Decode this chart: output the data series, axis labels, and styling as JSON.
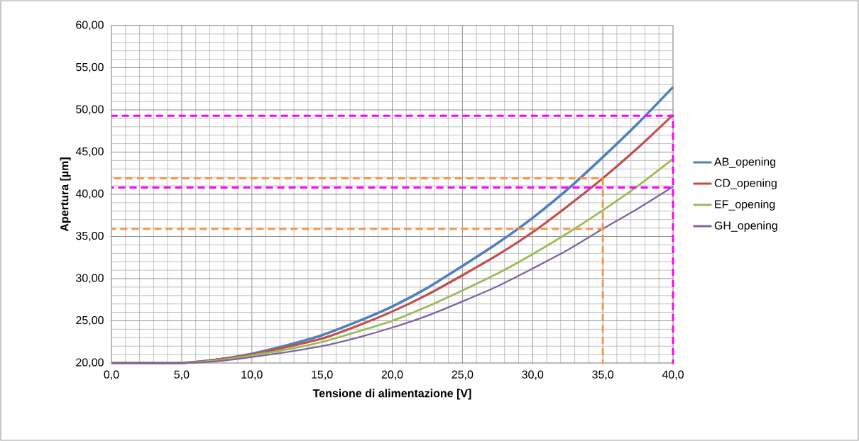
{
  "chart_data": {
    "type": "line",
    "xlabel": "Tensione di alimentazione [V]",
    "ylabel": "Apertura [µm]",
    "x": [
      0,
      2.5,
      5,
      7.5,
      10,
      12.5,
      15,
      17.5,
      20,
      22.5,
      25,
      27.5,
      30,
      32.5,
      35,
      37.5,
      40
    ],
    "series": [
      {
        "name": "AB_opening",
        "color": "#4f81bd",
        "values": [
          20,
          20,
          20.0,
          20.4,
          21.1,
          22.1,
          23.3,
          24.9,
          26.7,
          28.9,
          31.5,
          34.2,
          37.2,
          40.6,
          44.4,
          48.4,
          52.7
        ]
      },
      {
        "name": "CD_opening",
        "color": "#c0504d",
        "values": [
          20,
          20,
          20.0,
          20.4,
          21.0,
          21.9,
          22.9,
          24.4,
          26.1,
          28.1,
          30.4,
          32.8,
          35.5,
          38.6,
          41.9,
          45.5,
          49.4
        ]
      },
      {
        "name": "EF_opening",
        "color": "#9bbb59",
        "values": [
          20,
          20,
          20.0,
          20.3,
          20.9,
          21.6,
          22.5,
          23.7,
          25.0,
          26.7,
          28.6,
          30.6,
          32.9,
          35.4,
          38.1,
          41.0,
          44.2
        ]
      },
      {
        "name": "GH_opening",
        "color": "#8064a2",
        "values": [
          20,
          20,
          20,
          20.2,
          20.7,
          21.3,
          22.0,
          23.0,
          24.2,
          25.6,
          27.3,
          29.1,
          31.2,
          33.4,
          35.9,
          38.3,
          40.9
        ]
      },
      {
        "color": "#f79646",
        "line_style": "dashed",
        "x": [
          0,
          35,
          35,
          35,
          0
        ],
        "values": [
          41.9,
          41.9,
          20,
          35.9,
          35.9
        ]
      },
      {
        "color": "#ff00ff",
        "line_style": "dashed",
        "x": [
          0,
          40,
          40,
          40,
          0
        ],
        "values": [
          49.3,
          49.3,
          20,
          40.8,
          40.8
        ]
      }
    ],
    "xlim": [
      0,
      40
    ],
    "ylim": [
      20,
      60
    ],
    "xticks": [
      {
        "value": 0,
        "label": "0,0"
      },
      {
        "value": 5,
        "label": "5,0"
      },
      {
        "value": 10,
        "label": "10,0"
      },
      {
        "value": 15,
        "label": "15,0"
      },
      {
        "value": 20,
        "label": "20,0"
      },
      {
        "value": 25,
        "label": "25,0"
      },
      {
        "value": 30,
        "label": "30,0"
      },
      {
        "value": 35,
        "label": "35,0"
      },
      {
        "value": 40,
        "label": "40,0"
      }
    ],
    "yticks": [
      {
        "value": 20,
        "label": "20,00"
      },
      {
        "value": 25,
        "label": "25,00"
      },
      {
        "value": 30,
        "label": "30,00"
      },
      {
        "value": 35,
        "label": "35,00"
      },
      {
        "value": 40,
        "label": "40,00"
      },
      {
        "value": 45,
        "label": "45,00"
      },
      {
        "value": 50,
        "label": "50,00"
      },
      {
        "value": 55,
        "label": "55,00"
      },
      {
        "value": 60,
        "label": "60,00"
      }
    ],
    "grid": true,
    "legend": "right",
    "marker": "none",
    "line_style": "solid"
  }
}
